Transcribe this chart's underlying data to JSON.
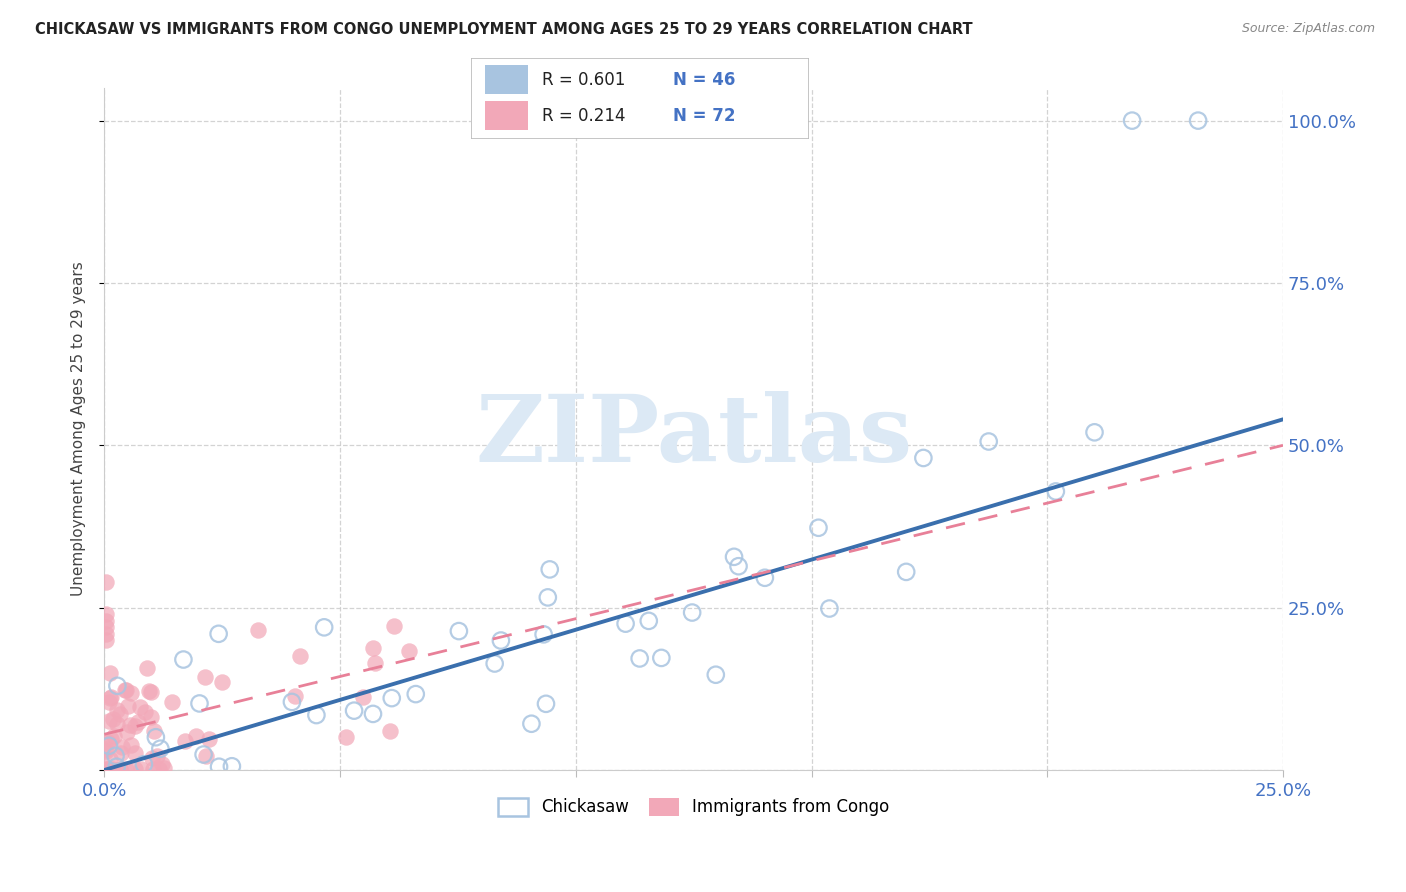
{
  "title": "CHICKASAW VS IMMIGRANTS FROM CONGO UNEMPLOYMENT AMONG AGES 25 TO 29 YEARS CORRELATION CHART",
  "source": "Source: ZipAtlas.com",
  "ylabel": "Unemployment Among Ages 25 to 29 years",
  "xlim": [
    0.0,
    0.25
  ],
  "ylim": [
    0.0,
    1.05
  ],
  "xtick_positions": [
    0.0,
    0.05,
    0.1,
    0.15,
    0.2,
    0.25
  ],
  "xticklabels": [
    "0.0%",
    "",
    "",
    "",
    "",
    "25.0%"
  ],
  "ytick_positions": [
    0.0,
    0.25,
    0.5,
    0.75,
    1.0
  ],
  "yticklabels_right": [
    "",
    "25.0%",
    "50.0%",
    "75.0%",
    "100.0%"
  ],
  "legend_labels": [
    "Chickasaw",
    "Immigrants from Congo"
  ],
  "chickasaw_R": "0.601",
  "chickasaw_N": "46",
  "congo_R": "0.214",
  "congo_N": "72",
  "chickasaw_scatter_color": "#a8c4e0",
  "congo_scatter_color": "#f2a8b8",
  "chickasaw_line_color": "#3a6fad",
  "congo_line_color": "#e88098",
  "tick_label_color": "#4472c4",
  "title_color": "#222222",
  "ylabel_color": "#444444",
  "grid_color": "#cccccc",
  "background_color": "#ffffff",
  "watermark_text": "ZIPatlas",
  "watermark_color": "#dce9f5",
  "chick_line": [
    0.0,
    0.0,
    0.25,
    0.54
  ],
  "congo_line": [
    0.0,
    0.055,
    0.25,
    0.5
  ]
}
